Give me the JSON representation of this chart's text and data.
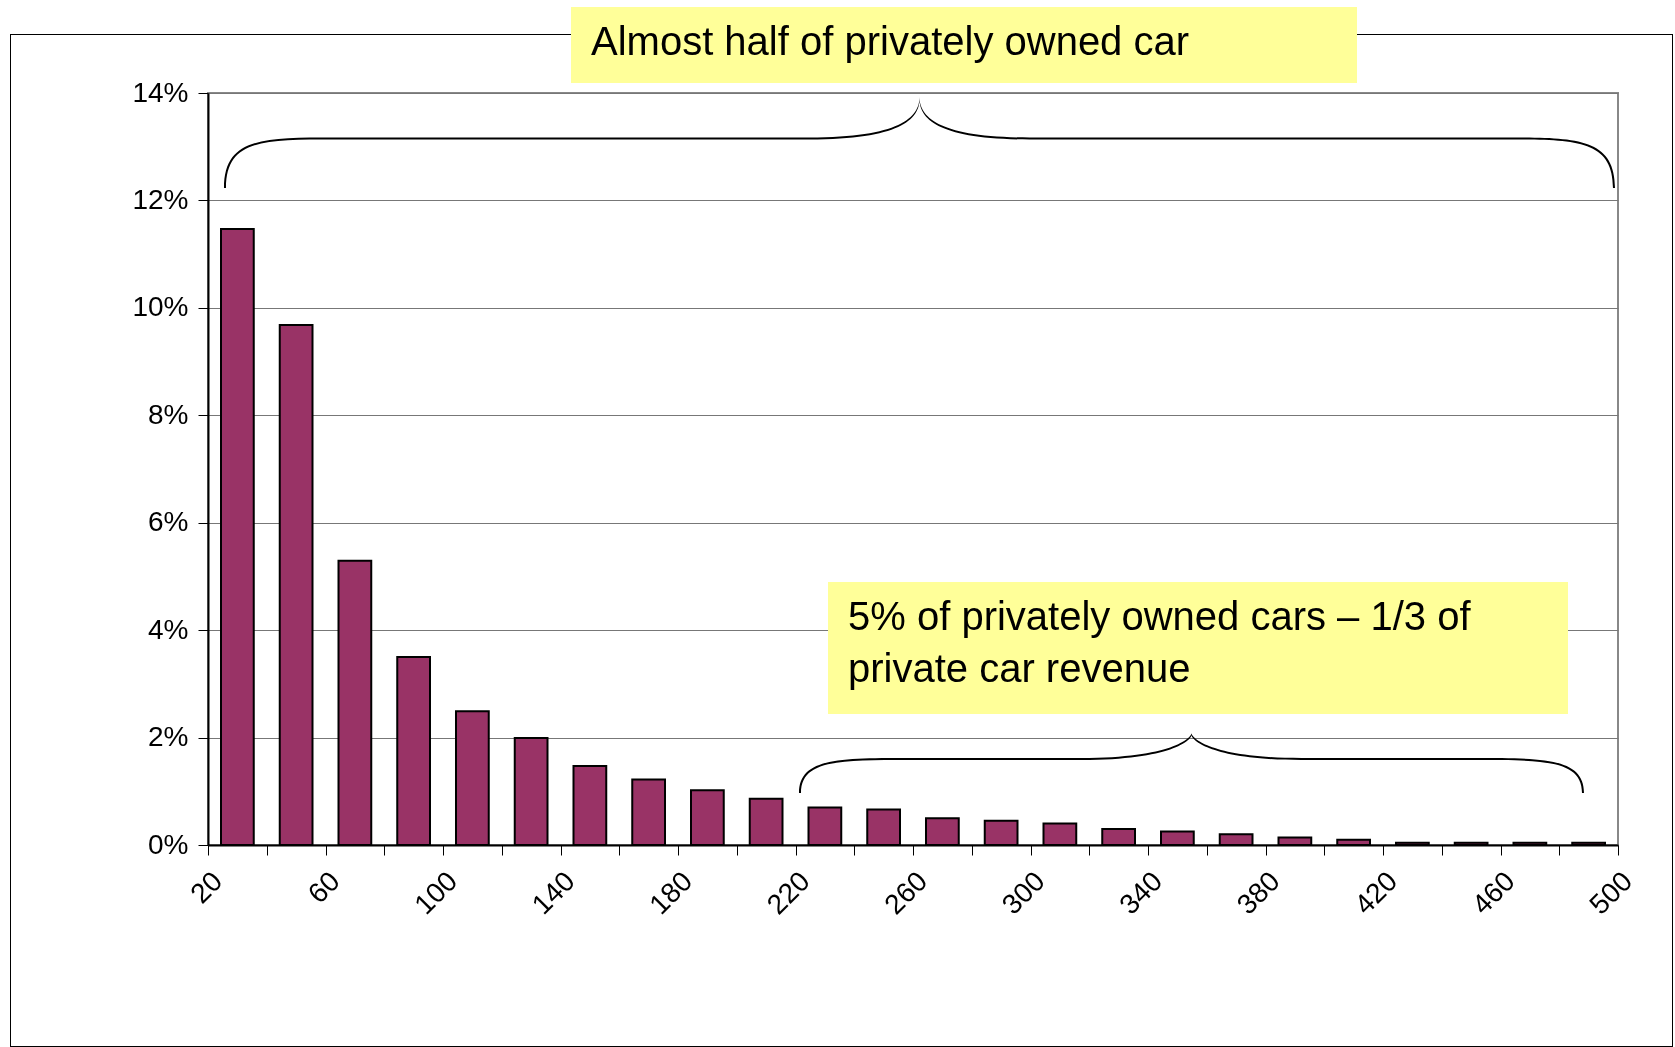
{
  "chart_data": {
    "type": "histogram",
    "bins": [
      20,
      40,
      60,
      80,
      100,
      120,
      140,
      160,
      180,
      200,
      220,
      240,
      260,
      280,
      300,
      320,
      340,
      360,
      380,
      400,
      420,
      440,
      460,
      480,
      500
    ],
    "values": [
      11.47,
      9.68,
      5.29,
      3.5,
      2.49,
      1.99,
      1.47,
      1.22,
      1.02,
      0.86,
      0.7,
      0.66,
      0.5,
      0.45,
      0.4,
      0.3,
      0.25,
      0.2,
      0.14,
      0.1,
      0.04,
      0.04,
      0.04,
      0.04
    ],
    "color": "#993366",
    "xlim": [
      20,
      500
    ],
    "xticks": [
      20,
      {
        "value": 40,
        "label": null
      },
      60,
      {
        "value": 80,
        "label": null
      },
      100,
      {
        "value": 120,
        "label": null
      },
      140,
      {
        "value": 160,
        "label": null
      },
      180,
      {
        "value": 200,
        "label": null
      },
      220,
      {
        "value": 240,
        "label": null
      },
      260,
      {
        "value": 280,
        "label": null
      },
      300,
      {
        "value": 320,
        "label": null
      },
      340,
      {
        "value": 360,
        "label": null
      },
      380,
      {
        "value": 400,
        "label": null
      },
      420,
      {
        "value": 440,
        "label": null
      },
      460,
      {
        "value": 480,
        "label": null
      },
      500
    ],
    "ylim": [
      0,
      14
    ],
    "yticks": [
      {
        "value": 0,
        "label": "0%"
      },
      {
        "value": 2,
        "label": "2%"
      },
      {
        "value": 4,
        "label": "4%"
      },
      {
        "value": 6,
        "label": "6%"
      },
      {
        "value": 8,
        "label": "8%"
      },
      {
        "value": 10,
        "label": "10%"
      },
      {
        "value": 12,
        "label": "12%"
      },
      {
        "value": 14,
        "label": "14%"
      }
    ],
    "grid": "y",
    "annotations": [
      "Almost half of privately owned car",
      "5% of privately owned cars – 1/3 of private car revenue"
    ]
  }
}
